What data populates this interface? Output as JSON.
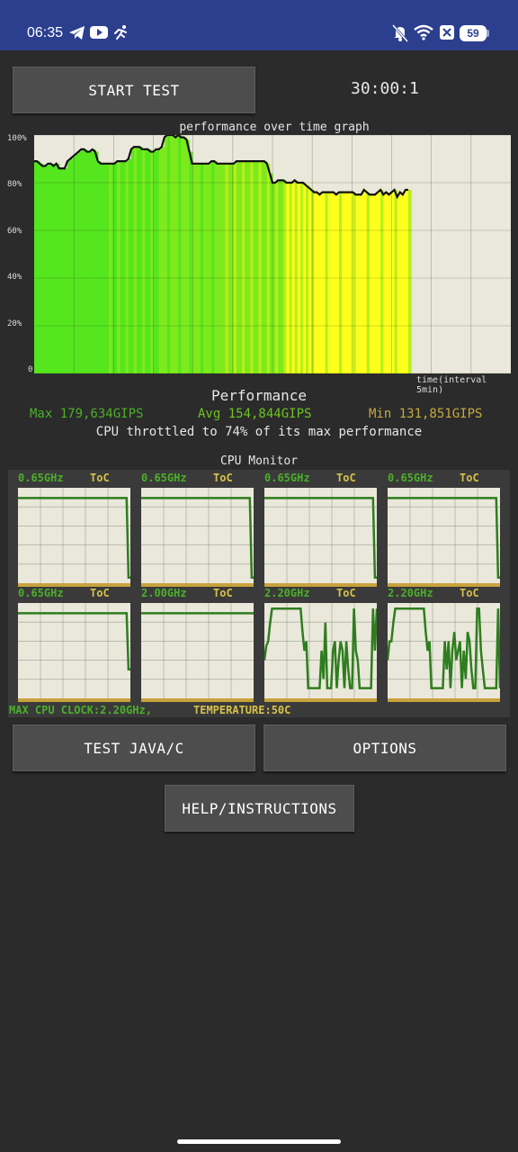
{
  "status_bar": {
    "time": "06:35",
    "battery": "59",
    "left_icons": [
      "telegram-icon",
      "youtube-icon",
      "running-icon"
    ],
    "right_icons": [
      "bell-off-icon",
      "wifi-icon",
      "x-icon"
    ]
  },
  "toolbar": {
    "start_label": "START TEST",
    "timer": "30:00:1"
  },
  "graph": {
    "title": "performance over time graph",
    "y_labels": [
      "100%",
      "80%",
      "60%",
      "40%",
      "20%",
      "0"
    ],
    "x_label": "time(interval 5min)"
  },
  "chart_data": {
    "type": "area",
    "title": "performance over time graph",
    "xlabel": "time(interval 5min)",
    "ylabel": "",
    "ylim": [
      0,
      100
    ],
    "y_ticks": [
      0,
      20,
      40,
      60,
      80,
      100
    ],
    "x_intervals": 12,
    "grid": true,
    "series": [
      {
        "values": [
          89,
          89,
          88,
          87,
          87,
          88,
          88,
          87,
          88,
          86,
          86,
          86,
          89,
          90,
          91,
          92,
          93,
          94,
          94,
          93,
          93,
          94,
          93,
          89,
          88,
          88,
          88,
          88,
          88,
          88,
          89,
          89,
          89,
          89,
          90,
          94,
          95,
          95,
          95,
          94,
          94,
          94,
          93,
          93,
          94,
          94,
          95,
          99,
          100,
          100,
          100,
          99,
          100,
          99,
          99,
          98,
          93,
          88,
          88,
          88,
          88,
          88,
          88,
          88,
          89,
          89,
          88,
          88,
          88,
          88,
          88,
          88,
          88,
          89,
          89,
          89,
          89,
          89,
          89,
          89,
          89,
          89,
          89,
          89,
          88,
          84,
          80,
          80,
          81,
          81,
          81,
          80,
          80,
          80,
          81,
          80,
          80,
          80,
          79,
          78,
          77,
          76,
          76,
          75,
          76,
          76,
          76,
          76,
          76,
          75,
          76,
          76,
          76,
          76,
          76,
          76,
          75,
          75,
          75,
          77,
          76,
          75,
          75,
          75,
          76,
          77,
          75,
          76,
          75,
          76,
          77,
          74,
          76,
          75,
          77,
          77
        ]
      }
    ],
    "fill_colors": [
      "#55e61e",
      "#7eea1c",
      "#b7f018",
      "#ffff1e"
    ],
    "background": "#e9e8da"
  },
  "performance": {
    "title": "Performance",
    "max": "Max 179,634GIPS",
    "avg": "Avg 154,844GIPS",
    "min": "Min 131,851GIPS",
    "throttle_text": "CPU throttled to 74% of its max performance",
    "colors": {
      "max": "#4caf2a",
      "avg": "#6cc421",
      "min": "#c6a93f"
    }
  },
  "cpu_monitor": {
    "title": "CPU Monitor",
    "cores": [
      {
        "freq": "0.65GHz",
        "temp": "ToC",
        "trace": [
          0.9,
          0.9,
          0.9,
          0.9,
          0.9,
          0.9,
          0.9,
          0.9,
          0.9,
          0.9,
          0.9,
          0.9,
          0.9,
          0.9,
          0.9,
          0.9,
          0.9,
          0.9,
          0.9,
          0.9,
          0.9,
          0.9,
          0.9,
          0.9,
          0.9,
          0.9,
          0.9,
          0.9,
          0.9,
          0.9,
          0.9,
          0.9,
          0.9,
          0.9,
          0.9,
          0.9,
          0.9,
          0.9,
          0.9,
          0.9,
          0.9,
          0.9,
          0.9,
          0.9,
          0.9,
          0.9,
          0.9,
          0.9,
          0.9,
          0.9,
          0.9,
          0.9,
          0.9,
          0.9,
          0.9,
          0.9,
          0.9,
          0.9,
          0.05,
          0.05
        ]
      },
      {
        "freq": "0.65GHz",
        "temp": "ToC",
        "trace": [
          0.9,
          0.9,
          0.9,
          0.9,
          0.9,
          0.9,
          0.9,
          0.9,
          0.9,
          0.9,
          0.9,
          0.9,
          0.9,
          0.9,
          0.9,
          0.9,
          0.9,
          0.9,
          0.9,
          0.9,
          0.9,
          0.9,
          0.9,
          0.9,
          0.9,
          0.9,
          0.9,
          0.9,
          0.9,
          0.9,
          0.9,
          0.9,
          0.9,
          0.9,
          0.9,
          0.9,
          0.9,
          0.9,
          0.9,
          0.9,
          0.9,
          0.9,
          0.9,
          0.9,
          0.9,
          0.9,
          0.9,
          0.9,
          0.9,
          0.9,
          0.9,
          0.9,
          0.9,
          0.9,
          0.9,
          0.9,
          0.9,
          0.9,
          0.05,
          0.05
        ]
      },
      {
        "freq": "0.65GHz",
        "temp": "ToC",
        "trace": [
          0.9,
          0.9,
          0.9,
          0.9,
          0.9,
          0.9,
          0.9,
          0.9,
          0.9,
          0.9,
          0.9,
          0.9,
          0.9,
          0.9,
          0.9,
          0.9,
          0.9,
          0.9,
          0.9,
          0.9,
          0.9,
          0.9,
          0.9,
          0.9,
          0.9,
          0.9,
          0.9,
          0.9,
          0.9,
          0.9,
          0.9,
          0.9,
          0.9,
          0.9,
          0.9,
          0.9,
          0.9,
          0.9,
          0.9,
          0.9,
          0.9,
          0.9,
          0.9,
          0.9,
          0.9,
          0.9,
          0.9,
          0.9,
          0.9,
          0.9,
          0.9,
          0.9,
          0.9,
          0.9,
          0.9,
          0.9,
          0.9,
          0.9,
          0.05,
          0.05
        ]
      },
      {
        "freq": "0.65GHz",
        "temp": "ToC",
        "trace": [
          0.9,
          0.9,
          0.9,
          0.9,
          0.9,
          0.9,
          0.9,
          0.9,
          0.9,
          0.9,
          0.9,
          0.9,
          0.9,
          0.9,
          0.9,
          0.9,
          0.9,
          0.9,
          0.9,
          0.9,
          0.9,
          0.9,
          0.9,
          0.9,
          0.9,
          0.9,
          0.9,
          0.9,
          0.9,
          0.9,
          0.9,
          0.9,
          0.9,
          0.9,
          0.9,
          0.9,
          0.9,
          0.9,
          0.9,
          0.9,
          0.9,
          0.9,
          0.9,
          0.9,
          0.9,
          0.9,
          0.9,
          0.9,
          0.9,
          0.9,
          0.9,
          0.9,
          0.9,
          0.9,
          0.9,
          0.9,
          0.9,
          0.9,
          0.05,
          0.05
        ]
      },
      {
        "freq": "0.65GHz",
        "temp": "ToC",
        "trace": [
          0.9,
          0.9,
          0.9,
          0.9,
          0.9,
          0.9,
          0.9,
          0.9,
          0.9,
          0.9,
          0.9,
          0.9,
          0.9,
          0.9,
          0.9,
          0.9,
          0.9,
          0.9,
          0.9,
          0.9,
          0.9,
          0.9,
          0.9,
          0.9,
          0.9,
          0.9,
          0.9,
          0.9,
          0.9,
          0.9,
          0.9,
          0.9,
          0.9,
          0.9,
          0.9,
          0.9,
          0.9,
          0.9,
          0.9,
          0.9,
          0.9,
          0.9,
          0.9,
          0.9,
          0.9,
          0.9,
          0.9,
          0.9,
          0.9,
          0.9,
          0.9,
          0.9,
          0.9,
          0.9,
          0.9,
          0.9,
          0.9,
          0.9,
          0.3,
          0.3
        ]
      },
      {
        "freq": "2.00GHz",
        "temp": "ToC",
        "trace": [
          0.9,
          0.9,
          0.9,
          0.9,
          0.9,
          0.9,
          0.9,
          0.9,
          0.9,
          0.9,
          0.9,
          0.9,
          0.9,
          0.9,
          0.9,
          0.9,
          0.9,
          0.9,
          0.9,
          0.9,
          0.9,
          0.9,
          0.9,
          0.9,
          0.9,
          0.9,
          0.9,
          0.9,
          0.9,
          0.9,
          0.9,
          0.9,
          0.9,
          0.9,
          0.9,
          0.9,
          0.9,
          0.9,
          0.9,
          0.9,
          0.9,
          0.9,
          0.9,
          0.9,
          0.9,
          0.9,
          0.9,
          0.9,
          0.9,
          0.9,
          0.9,
          0.9,
          0.9,
          0.9,
          0.9,
          0.9,
          0.9,
          0.9,
          0.9,
          0.9
        ]
      },
      {
        "freq": "2.20GHz",
        "temp": "ToC",
        "trace": [
          0.4,
          0.55,
          0.6,
          0.8,
          0.95,
          0.95,
          0.95,
          0.95,
          0.95,
          0.95,
          0.95,
          0.95,
          0.95,
          0.95,
          0.95,
          0.95,
          0.95,
          0.95,
          0.95,
          0.95,
          0.7,
          0.5,
          0.6,
          0.1,
          0.1,
          0.1,
          0.1,
          0.1,
          0.1,
          0.1,
          0.5,
          0.2,
          0.8,
          0.1,
          0.1,
          0.1,
          0.5,
          0.6,
          0.1,
          0.4,
          0.6,
          0.5,
          0.1,
          0.6,
          0.3,
          0.1,
          0.1,
          0.95,
          0.5,
          0.4,
          0.1,
          0.1,
          0.1,
          0.1,
          0.1,
          0.1,
          0.1,
          0.95,
          0.5,
          0.95
        ]
      },
      {
        "freq": "2.20GHz",
        "temp": "ToC",
        "trace": [
          0.4,
          0.6,
          0.6,
          0.8,
          0.95,
          0.95,
          0.95,
          0.95,
          0.95,
          0.95,
          0.95,
          0.95,
          0.95,
          0.95,
          0.95,
          0.95,
          0.95,
          0.95,
          0.95,
          0.95,
          0.7,
          0.5,
          0.6,
          0.1,
          0.1,
          0.1,
          0.1,
          0.1,
          0.1,
          0.1,
          0.6,
          0.3,
          0.6,
          0.1,
          0.5,
          0.7,
          0.4,
          0.5,
          0.6,
          0.1,
          0.5,
          0.2,
          0.7,
          0.6,
          0.3,
          0.1,
          0.1,
          0.95,
          0.95,
          0.5,
          0.3,
          0.1,
          0.1,
          0.1,
          0.1,
          0.1,
          0.1,
          0.1,
          0.95,
          0.1
        ]
      }
    ],
    "max_clock": "MAX CPU CLOCK:2.20GHz,",
    "temperature": "TEMPERATURE:50C",
    "colors": {
      "trace": "#2e7d1e",
      "freq": "#4caf2a",
      "temp": "#d6c24a",
      "baseline": "#c8a23c"
    }
  },
  "buttons": {
    "test_java_c": "TEST JAVA/C",
    "options": "OPTIONS",
    "help": "HELP/INSTRUCTIONS"
  }
}
